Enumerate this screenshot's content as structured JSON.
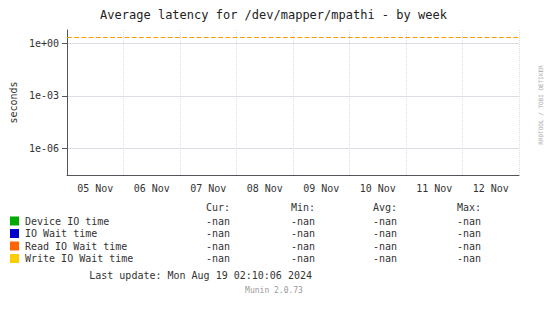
{
  "chart_data": {
    "type": "line",
    "title": "Average latency for /dev/mapper/mpathi - by week",
    "ylabel": "seconds",
    "categories": [
      "05 Nov",
      "06 Nov",
      "07 Nov",
      "08 Nov",
      "09 Nov",
      "10 Nov",
      "11 Nov",
      "12 Nov"
    ],
    "series": [
      {
        "name": "Device IO time",
        "color": "#00aa00",
        "values": [
          null,
          null,
          null,
          null,
          null,
          null,
          null,
          null
        ],
        "stats": [
          "-nan",
          "-nan",
          "-nan",
          "-nan"
        ]
      },
      {
        "name": "IO Wait time",
        "color": "#0000cc",
        "values": [
          null,
          null,
          null,
          null,
          null,
          null,
          null,
          null
        ],
        "stats": [
          "-nan",
          "-nan",
          "-nan",
          "-nan"
        ]
      },
      {
        "name": "Read IO Wait time",
        "color": "#ff6600",
        "values": [
          null,
          null,
          null,
          null,
          null,
          null,
          null,
          null
        ],
        "stats": [
          "-nan",
          "-nan",
          "-nan",
          "-nan"
        ]
      },
      {
        "name": "Write IO Wait time",
        "color": "#ffcc00",
        "values": [
          null,
          null,
          null,
          null,
          null,
          null,
          null,
          null
        ],
        "stats": [
          "-nan",
          "-nan",
          "-nan",
          "-nan"
        ]
      }
    ],
    "stat_columns": [
      "Cur:",
      "Min:",
      "Avg:",
      "Max:"
    ],
    "reference_line": {
      "y": 2.2,
      "color": "#ff9900",
      "line_style": "dashed"
    },
    "log": "y",
    "ylim": [
      3e-08,
      6
    ],
    "yticks": [
      {
        "value": 1e-06,
        "label": "1e-06"
      },
      {
        "value": 0.001,
        "label": "1e-03"
      },
      {
        "value": 1.0,
        "label": "1e+00"
      }
    ],
    "grid": true,
    "watermark": "RRDTOOL / TOBI OETIKER",
    "last_update": "Last update: Mon Aug 19 02:10:06 2024",
    "footer": "Munin 2.0.73"
  }
}
